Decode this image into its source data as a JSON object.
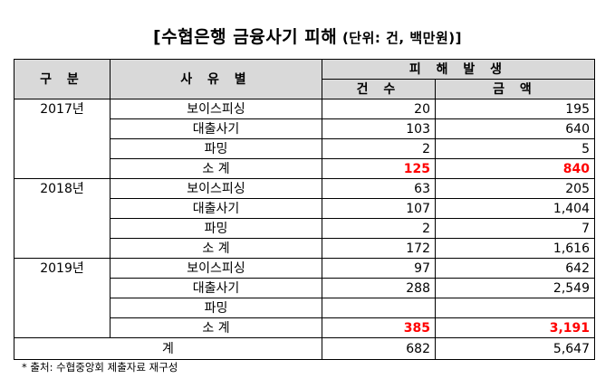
{
  "title": "[수협은행 금융사기 피해",
  "unit": " (단위: 건, 백만원)]",
  "headers": {
    "category": "구 분",
    "reason": "사 유 별",
    "damage": "피 해 발 생",
    "count": "건 수",
    "amount": "금 액"
  },
  "rows": [
    {
      "year": "2017년",
      "reason": "보이스피싱",
      "count": "20",
      "amount": "195",
      "highlight": false
    },
    {
      "year": "",
      "reason": "대출사기",
      "count": "103",
      "amount": "640",
      "highlight": false
    },
    {
      "year": "",
      "reason": "파밍",
      "count": "2",
      "amount": "5",
      "highlight": false
    },
    {
      "year": "",
      "reason": "소 계",
      "count": "125",
      "amount": "840",
      "highlight": true
    },
    {
      "year": "2018년",
      "reason": "보이스피싱",
      "count": "63",
      "amount": "205",
      "highlight": false
    },
    {
      "year": "",
      "reason": "대출사기",
      "count": "107",
      "amount": "1,404",
      "highlight": false
    },
    {
      "year": "",
      "reason": "파밍",
      "count": "2",
      "amount": "7",
      "highlight": false
    },
    {
      "year": "",
      "reason": "소 계",
      "count": "172",
      "amount": "1,616",
      "highlight": false
    },
    {
      "year": "2019년",
      "reason": "보이스피싱",
      "count": "97",
      "amount": "642",
      "highlight": false
    },
    {
      "year": "",
      "reason": "대출사기",
      "count": "288",
      "amount": "2,549",
      "highlight": false
    },
    {
      "year": "",
      "reason": "파밍",
      "count": "",
      "amount": "",
      "highlight": false
    },
    {
      "year": "",
      "reason": "소 계",
      "count": "385",
      "amount": "3,191",
      "highlight": true
    }
  ],
  "total": {
    "label": "계",
    "count": "682",
    "amount": "5,647"
  },
  "note": "* 출처: 수협중앙회 제출자료 재구성",
  "colors": {
    "header_bg": "#d9d9d9",
    "highlight": "#ff0000"
  }
}
